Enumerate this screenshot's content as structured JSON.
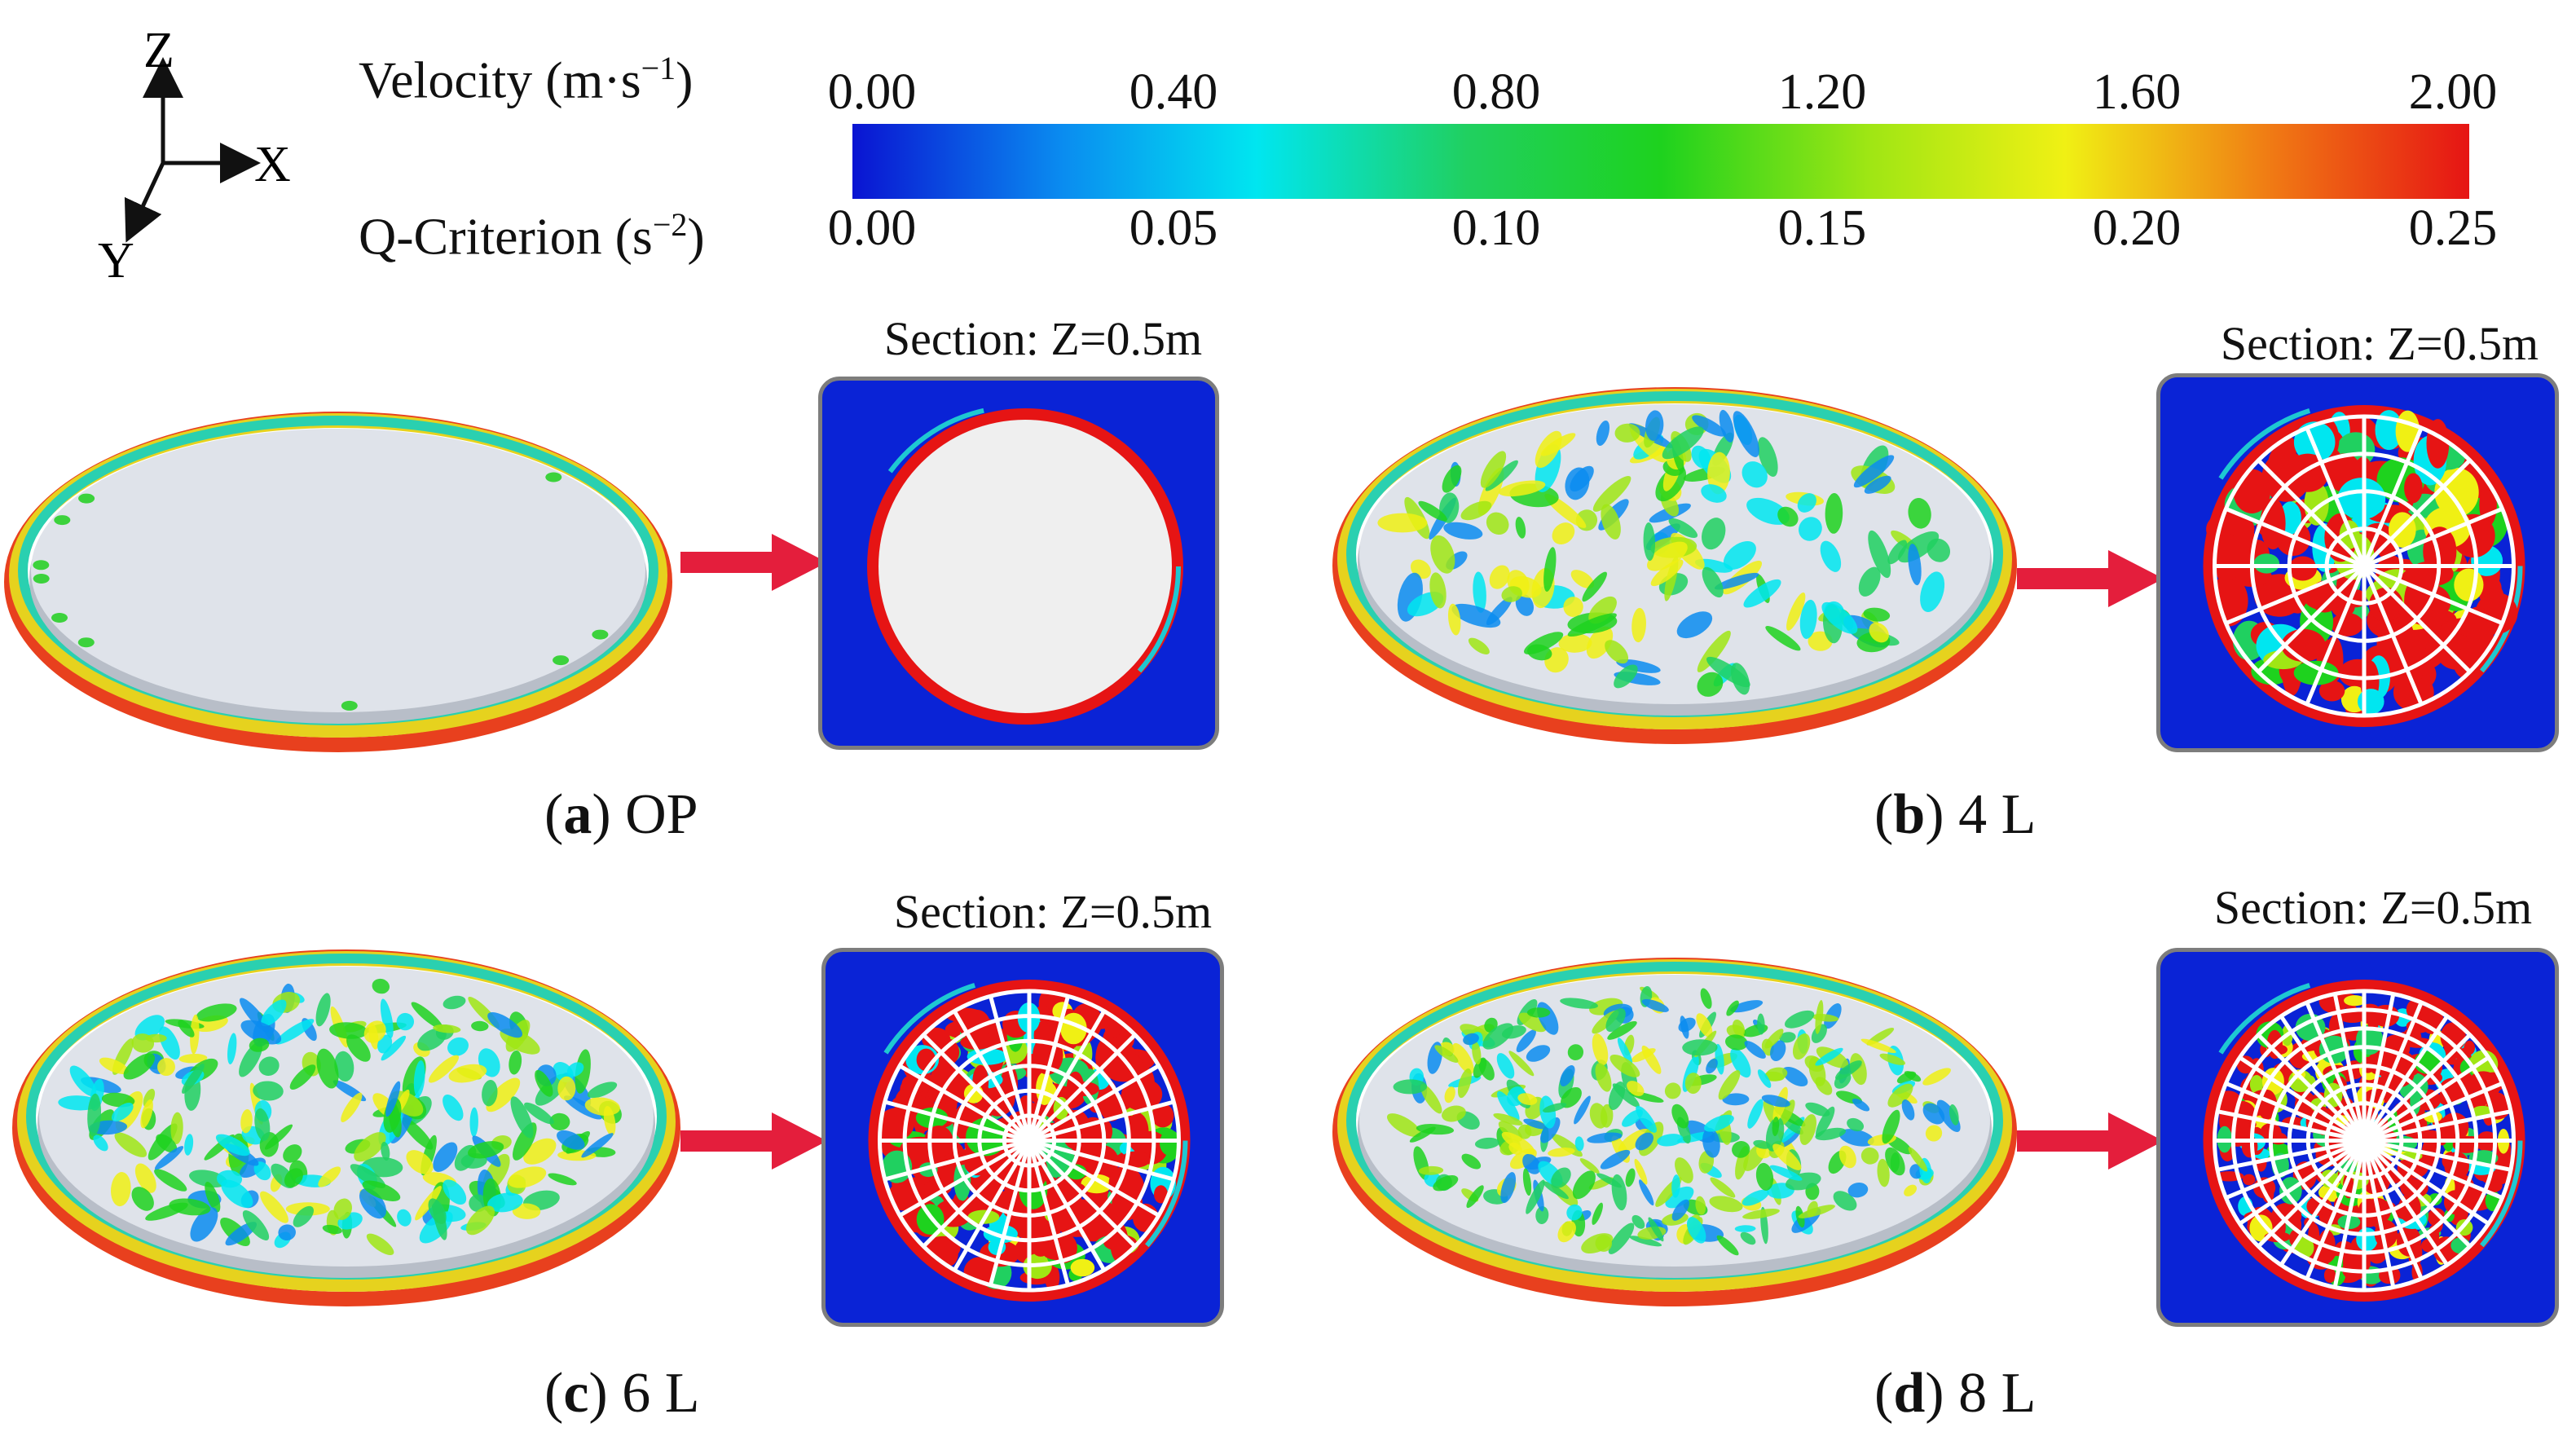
{
  "axes": {
    "z_label": "Z",
    "x_label": "X",
    "y_label": "Y"
  },
  "colorbar": {
    "velocity": {
      "label": "Velocity (m·s",
      "exp": "−1",
      "close": ")",
      "ticks": [
        "0.00",
        "0.40",
        "0.80",
        "1.20",
        "1.60",
        "2.00"
      ]
    },
    "qcriterion": {
      "label": "Q-Criterion (s",
      "exp": "−2",
      "close": ")",
      "ticks": [
        "0.00",
        "0.05",
        "0.10",
        "0.15",
        "0.20",
        "0.25"
      ]
    },
    "colors": [
      "#0a14d2",
      "#0a8cf0",
      "#00e6f0",
      "#20d060",
      "#1ed21e",
      "#a0e614",
      "#f0f014",
      "#f07814",
      "#e61414"
    ]
  },
  "panels": [
    {
      "id": "a",
      "letter": "a",
      "name": "OP",
      "section_label": "Section: Z=0.5m",
      "layers": 0
    },
    {
      "id": "b",
      "letter": "b",
      "name": "4 L",
      "section_label": "Section: Z=0.5m",
      "layers": 4
    },
    {
      "id": "c",
      "letter": "c",
      "name": "6 L",
      "section_label": "Section: Z=0.5m",
      "layers": 6
    },
    {
      "id": "d",
      "letter": "d",
      "name": "8 L",
      "section_label": "Section: Z=0.5m",
      "layers": 8
    }
  ]
}
